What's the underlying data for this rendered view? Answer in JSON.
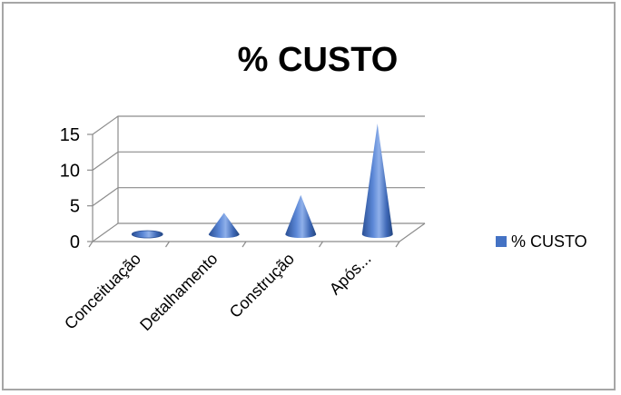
{
  "chart_data": {
    "type": "bar",
    "title": "% CUSTO",
    "categories": [
      "Conceituação",
      "Detalhamento",
      "Construção",
      "Após..."
    ],
    "series": [
      {
        "name": "% CUSTO",
        "values": [
          0.3,
          3,
          5.5,
          15.5
        ]
      }
    ],
    "ylim": [
      0,
      15
    ],
    "yticks": [
      "0",
      "5",
      "10",
      "15"
    ],
    "grid": true,
    "legend": "right",
    "mark_shape": "cone",
    "color": "#4472c4"
  }
}
